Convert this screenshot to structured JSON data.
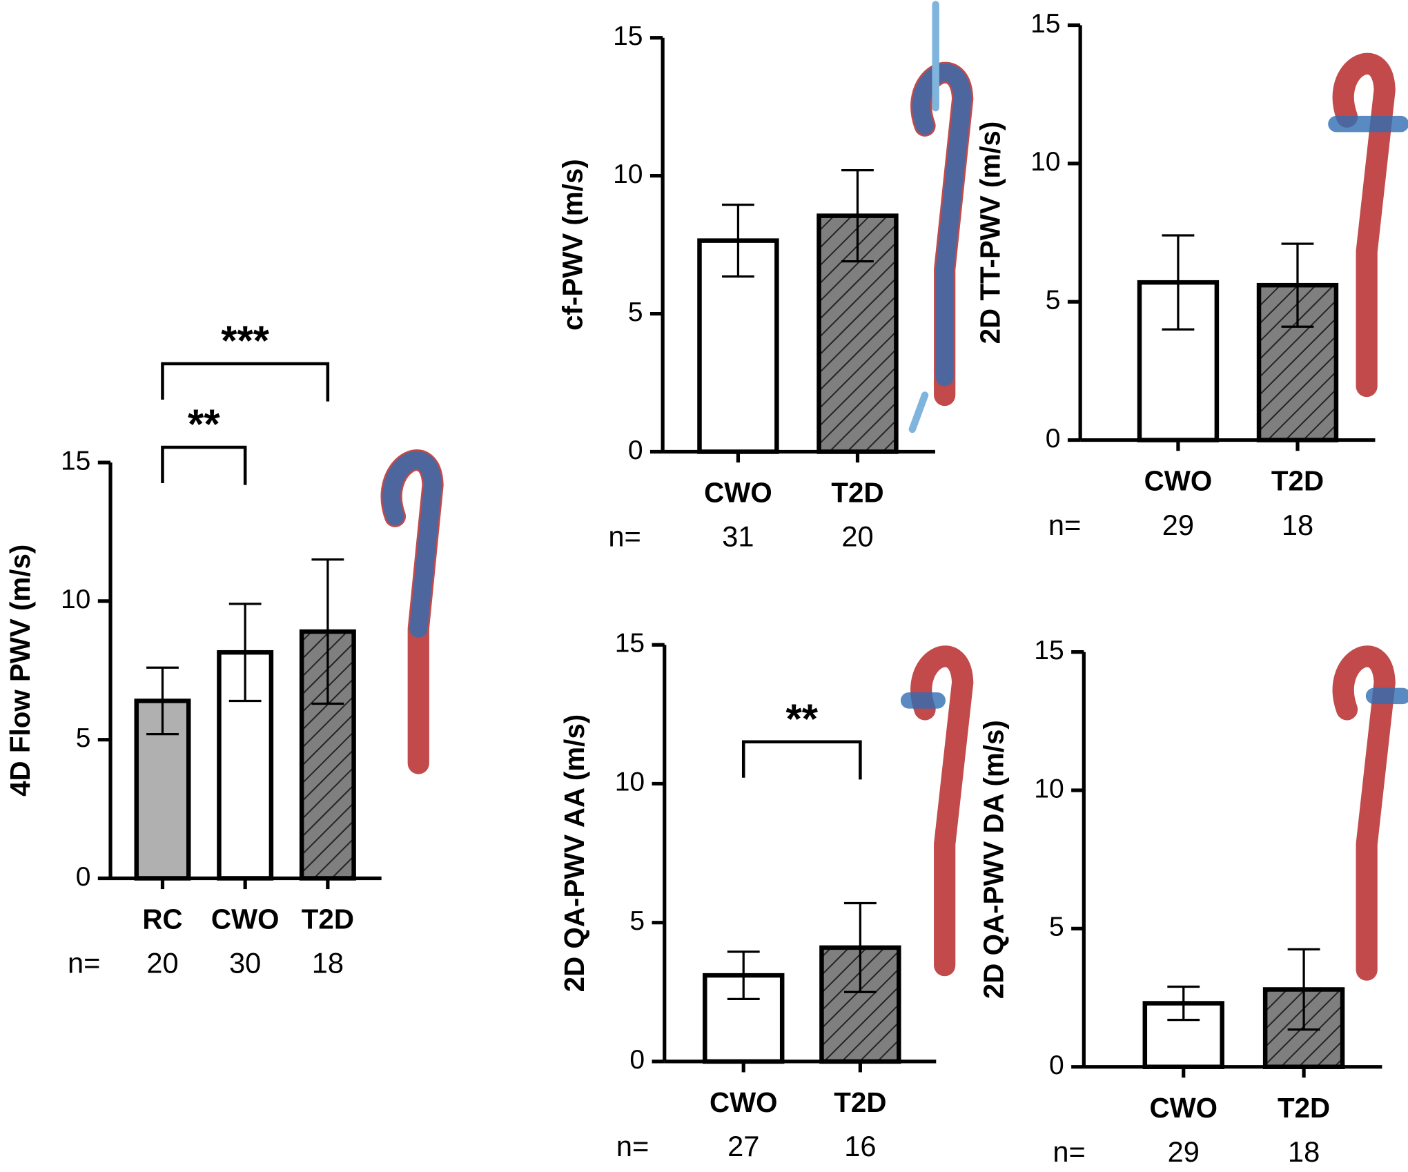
{
  "chart_data": [
    {
      "type": "bar",
      "y_label": "4D Flow PWV (m/s)",
      "categories": [
        "RC",
        "CWO",
        "T2D"
      ],
      "values": [
        6.4,
        8.15,
        8.9
      ],
      "errors": [
        1.2,
        1.75,
        2.6
      ],
      "colors": [
        "#b0b0b0",
        "#ffffff",
        "#7f7f7f"
      ],
      "hatch": [
        false,
        false,
        true
      ],
      "ylim": [
        0,
        15
      ],
      "yticks": [
        0,
        5,
        10,
        15
      ],
      "n_label": "n=",
      "n_values": [
        20,
        30,
        18
      ],
      "comparisons": [
        {
          "label": "**",
          "between": [
            "RC",
            "CWO"
          ]
        },
        {
          "label": "***",
          "between": [
            "RC",
            "T2D"
          ]
        }
      ]
    },
    {
      "type": "bar",
      "y_label": "cf-PWV (m/s)",
      "categories": [
        "CWO",
        "T2D"
      ],
      "values": [
        7.65,
        8.55
      ],
      "errors": [
        1.3,
        1.65
      ],
      "colors": [
        "#ffffff",
        "#7f7f7f"
      ],
      "hatch": [
        false,
        true
      ],
      "ylim": [
        0,
        15
      ],
      "yticks": [
        0,
        5,
        10,
        15
      ],
      "n_label": "n=",
      "n_values": [
        31,
        20
      ]
    },
    {
      "type": "bar",
      "y_label": "2D TT-PWV (m/s)",
      "categories": [
        "CWO",
        "T2D"
      ],
      "values": [
        5.7,
        5.6
      ],
      "errors": [
        1.7,
        1.5
      ],
      "colors": [
        "#ffffff",
        "#7f7f7f"
      ],
      "hatch": [
        false,
        true
      ],
      "ylim": [
        0,
        15
      ],
      "yticks": [
        0,
        5,
        10,
        15
      ],
      "n_label": "n=",
      "n_values": [
        29,
        18
      ]
    },
    {
      "type": "bar",
      "y_label": "2D QA-PWV AA (m/s)",
      "categories": [
        "CWO",
        "T2D"
      ],
      "values": [
        3.1,
        4.1
      ],
      "errors": [
        0.85,
        1.6
      ],
      "colors": [
        "#ffffff",
        "#7f7f7f"
      ],
      "hatch": [
        false,
        true
      ],
      "ylim": [
        0,
        15
      ],
      "yticks": [
        0,
        5,
        10,
        15
      ],
      "n_label": "n=",
      "n_values": [
        27,
        16
      ],
      "comparisons": [
        {
          "label": "**",
          "between": [
            "CWO",
            "T2D"
          ]
        }
      ]
    },
    {
      "type": "bar",
      "y_label": "2D QA-PWV DA (m/s)",
      "categories": [
        "CWO",
        "T2D"
      ],
      "values": [
        2.3,
        2.8
      ],
      "errors": [
        0.6,
        1.45
      ],
      "colors": [
        "#ffffff",
        "#7f7f7f"
      ],
      "hatch": [
        false,
        true
      ],
      "ylim": [
        0,
        15
      ],
      "yticks": [
        0,
        5,
        10,
        15
      ],
      "n_label": "n=",
      "n_values": [
        29,
        18
      ]
    }
  ]
}
